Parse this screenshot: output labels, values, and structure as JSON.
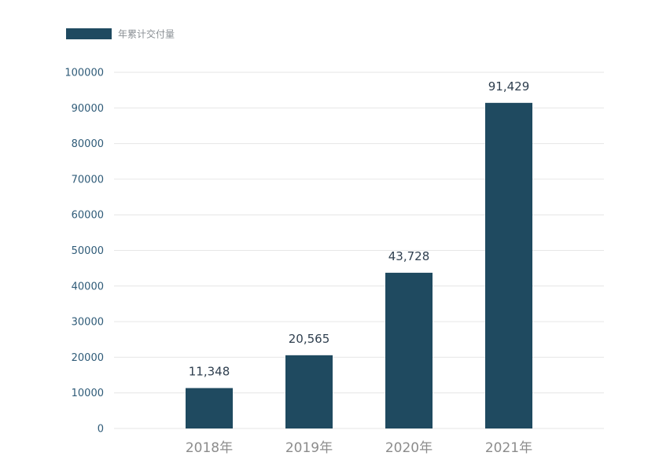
{
  "chart_data": {
    "type": "bar",
    "categories": [
      "2018年",
      "2019年",
      "2020年",
      "2021年"
    ],
    "series": [
      {
        "name": "年累计交付量",
        "values": [
          11348,
          20565,
          43728,
          91429
        ],
        "labels": [
          "11,348",
          "20,565",
          "43,728",
          "91,429"
        ]
      }
    ],
    "ylim": [
      0,
      100000
    ],
    "yticks": [
      "0",
      "10000",
      "20000",
      "30000",
      "40000",
      "50000",
      "60000",
      "70000",
      "80000",
      "90000",
      "100000"
    ],
    "grid": true,
    "legend_position": "top-left",
    "colors": {
      "bar": "#1f4a60",
      "grid": "#e6e6e6",
      "tick_text": "#2f5b78",
      "category_text": "#8c8c8c",
      "value_text": "#2f3f4f",
      "legend_text": "#8a8f94"
    }
  }
}
